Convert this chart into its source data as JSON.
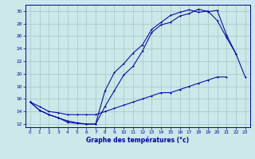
{
  "xlabel": "Graphe des températures (°c)",
  "background_color": "#cce8e8",
  "grid_color": "#aacccc",
  "line_color": "#0000aa",
  "xlim": [
    -0.5,
    23.5
  ],
  "ylim": [
    11.5,
    31
  ],
  "yticks": [
    12,
    14,
    16,
    18,
    20,
    22,
    24,
    26,
    28,
    30
  ],
  "xticks": [
    0,
    1,
    2,
    3,
    4,
    5,
    6,
    7,
    8,
    9,
    10,
    11,
    12,
    13,
    14,
    15,
    16,
    17,
    18,
    19,
    20,
    21,
    22,
    23
  ],
  "line1_x": [
    0,
    1,
    2,
    3,
    4,
    5,
    6,
    7,
    8,
    9,
    10,
    11,
    12,
    13,
    14,
    15,
    16,
    17,
    18,
    19,
    20,
    21,
    22,
    23
  ],
  "line1_y": [
    15.5,
    14.2,
    13.5,
    13.0,
    12.3,
    12.1,
    12.0,
    12.0,
    14.8,
    17.3,
    19.8,
    21.2,
    23.6,
    26.6,
    27.8,
    28.2,
    29.2,
    29.6,
    30.3,
    29.9,
    30.1,
    26.2,
    23.2,
    19.5
  ],
  "line2_x": [
    0,
    1,
    2,
    3,
    4,
    5,
    6,
    7,
    8,
    9,
    10,
    11,
    12,
    13,
    14,
    15,
    16,
    17,
    18,
    19,
    20,
    21,
    22,
    23
  ],
  "line2_y": [
    15.5,
    14.2,
    13.5,
    13.0,
    12.5,
    12.2,
    12.0,
    12.0,
    17.3,
    20.2,
    21.6,
    23.3,
    24.6,
    27.1,
    28.2,
    29.3,
    29.8,
    30.2,
    29.8,
    30.0,
    28.5,
    25.8,
    23.2,
    null
  ],
  "line3_x": [
    0,
    1,
    2,
    3,
    4,
    5,
    6,
    7,
    8,
    9,
    10,
    11,
    12,
    13,
    14,
    15,
    16,
    17,
    18,
    19,
    20,
    21,
    22,
    23
  ],
  "line3_y": [
    15.5,
    14.8,
    14.0,
    13.8,
    13.5,
    13.5,
    13.5,
    13.5,
    14.0,
    14.5,
    15.0,
    15.5,
    16.0,
    16.5,
    17.0,
    17.0,
    17.5,
    18.0,
    18.5,
    19.0,
    19.5,
    19.5,
    null,
    null
  ]
}
